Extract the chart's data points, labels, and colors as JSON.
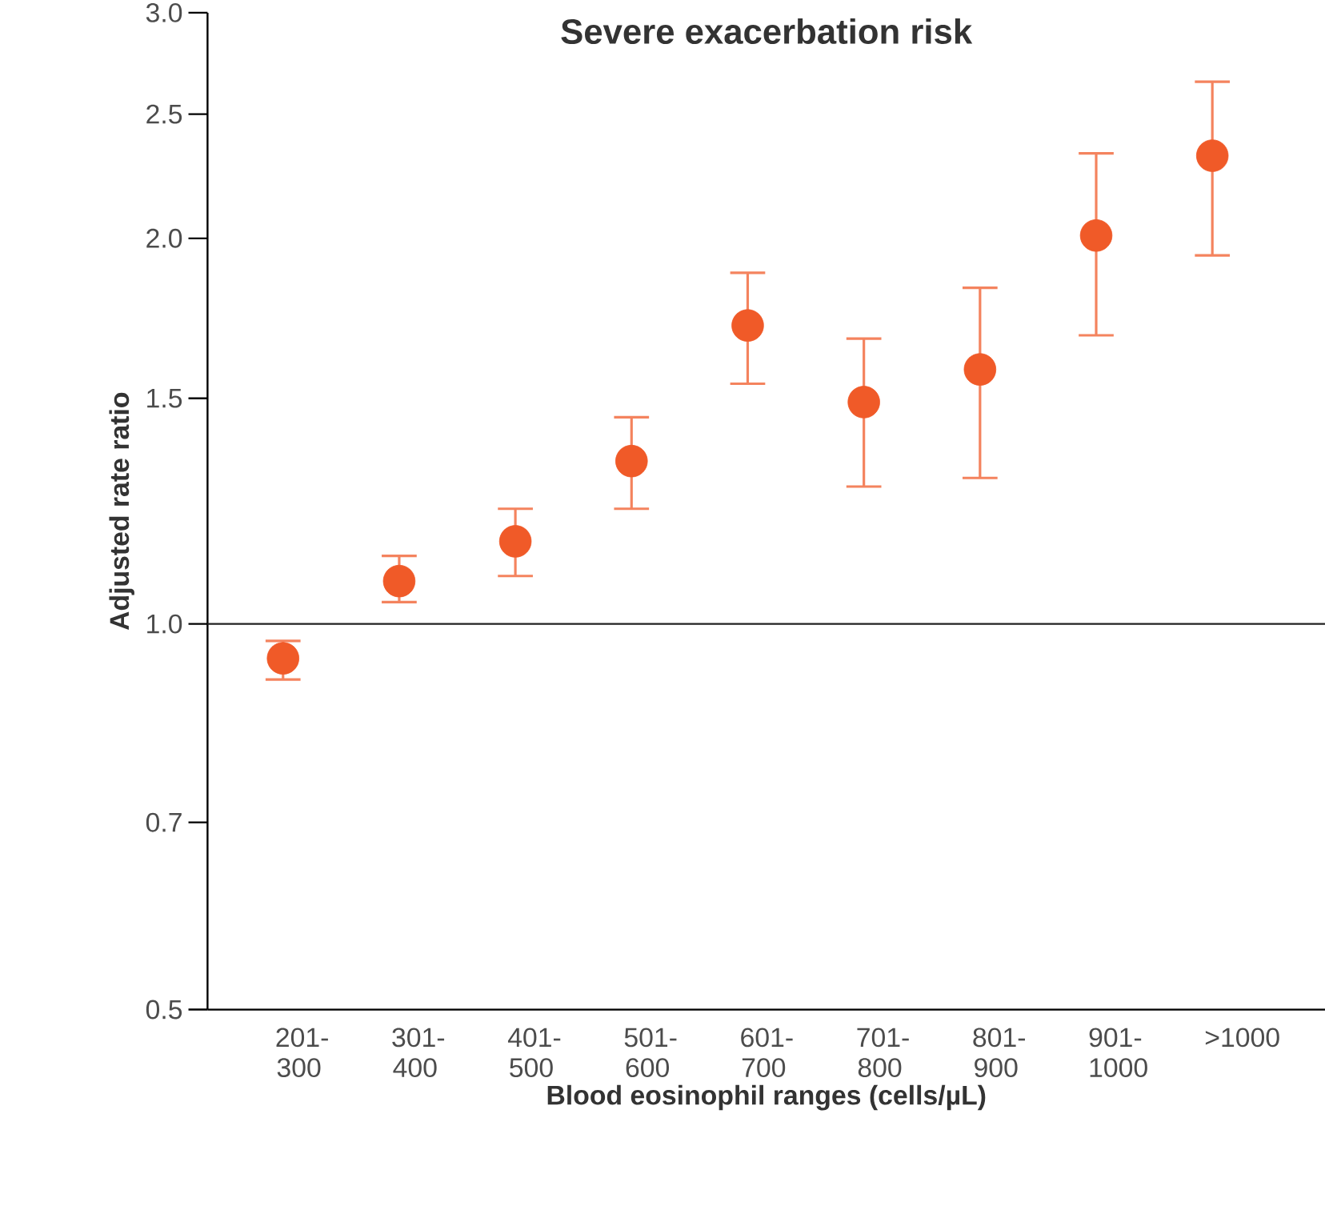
{
  "chart_data": {
    "type": "scatter",
    "title": "Severe exacerbation risk",
    "xlabel": "Blood eosinophil ranges (cells/µL)",
    "ylabel": "Adjusted rate ratio",
    "categories": [
      "201-300",
      "301-400",
      "401-500",
      "501-600",
      "601-700",
      "701-800",
      "801-900",
      "901-1000",
      ">1000"
    ],
    "series": [
      {
        "color": "#f05a28",
        "values": [
          0.94,
          1.08,
          1.16,
          1.34,
          1.71,
          1.49,
          1.58,
          2.01,
          2.32
        ],
        "errors": [
          [
            0.905,
            0.97
          ],
          [
            1.04,
            1.13
          ],
          [
            1.09,
            1.23
          ],
          [
            1.23,
            1.45
          ],
          [
            1.54,
            1.88
          ],
          [
            1.28,
            1.67
          ],
          [
            1.3,
            1.83
          ],
          [
            1.68,
            2.33
          ],
          [
            1.94,
            2.65
          ]
        ]
      }
    ],
    "log": "y",
    "ylim": [
      0.5,
      3.0
    ],
    "yticks": [
      {
        "value": 0.5,
        "label": "0.5"
      },
      {
        "value": 0.7,
        "label": "0.7"
      },
      {
        "value": 1.0,
        "label": "1.0"
      },
      {
        "value": 1.5,
        "label": "1.5"
      },
      {
        "value": 2.0,
        "label": "2.0"
      },
      {
        "value": 2.5,
        "label": "2.5"
      },
      {
        "value": 3.0,
        "label": "3.0"
      }
    ],
    "ref_lines": [
      {
        "axis": "y",
        "value": 1.0,
        "color": "#222222"
      }
    ],
    "marker": "circle",
    "grid": false
  }
}
